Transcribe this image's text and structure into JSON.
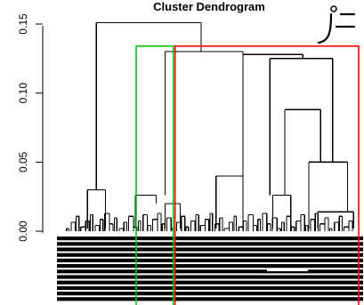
{
  "chart_data": {
    "type": "dendrogram",
    "title": "Cluster Dendrogram",
    "xlabel": "",
    "ylabel": "",
    "ylim": [
      0,
      0.15
    ],
    "yticks": [
      "0.00",
      "0.05",
      "0.10",
      "0.15"
    ],
    "merges": [
      {
        "left_x": 0.12,
        "right_x": 0.47,
        "height": 0.151
      },
      {
        "left_x": 0.35,
        "right_x": 0.61,
        "height": 0.13
      },
      {
        "left_x": 0.61,
        "right_x": 0.81,
        "height": 0.128
      },
      {
        "left_x": 0.7,
        "right_x": 0.91,
        "height": 0.125
      },
      {
        "left_x": 0.75,
        "right_x": 0.87,
        "height": 0.088
      },
      {
        "left_x": 0.83,
        "right_x": 0.96,
        "height": 0.05
      },
      {
        "left_x": 0.09,
        "right_x": 0.15,
        "height": 0.03
      },
      {
        "left_x": 0.52,
        "right_x": 0.61,
        "height": 0.04
      },
      {
        "left_x": 0.71,
        "right_x": 0.77,
        "height": 0.026
      },
      {
        "left_x": 0.86,
        "right_x": 0.98,
        "height": 0.014
      },
      {
        "left_x": 0.25,
        "right_x": 0.32,
        "height": 0.026
      },
      {
        "left_x": 0.35,
        "right_x": 0.4,
        "height": 0.02
      }
    ],
    "highlight_boxes": [
      {
        "color": "#00cc00",
        "from_x": 0.25,
        "to_x": 0.38
      },
      {
        "color": "#ff0000",
        "from_x": 0.38,
        "to_x": 1.0
      }
    ]
  }
}
